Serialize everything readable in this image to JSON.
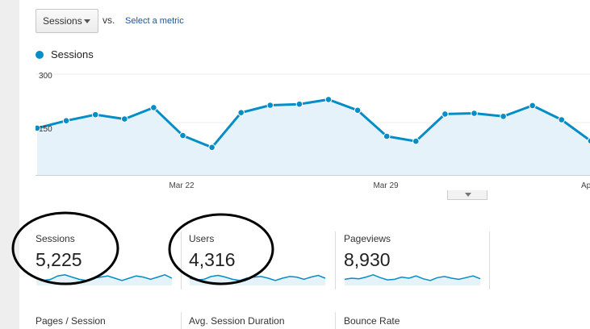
{
  "toolbar": {
    "metric_select": "Sessions",
    "vs": "vs.",
    "select_metric": "Select a metric"
  },
  "legend": {
    "series": "Sessions",
    "color": "#058dc7"
  },
  "chart_data": {
    "type": "area",
    "series": [
      {
        "name": "Sessions",
        "values": [
          140,
          162,
          180,
          167,
          201,
          118,
          83,
          186,
          208,
          211,
          225,
          193,
          116,
          101,
          182,
          184,
          175,
          207,
          165,
          102
        ]
      }
    ],
    "x_tick_labels": [
      "Mar 22",
      "Mar 29",
      "Ap"
    ],
    "y_tick_labels": [
      "300",
      "150"
    ],
    "ylim": [
      0,
      300
    ],
    "grid": true
  },
  "metrics": [
    {
      "label": "Sessions",
      "value": "5,225",
      "spark": [
        0.5,
        0.3,
        0.4,
        0.7,
        0.8,
        0.6,
        0.4,
        0.3,
        0.5,
        0.6,
        0.7,
        0.5,
        0.3,
        0.5,
        0.7,
        0.6,
        0.4,
        0.6,
        0.8,
        0.5
      ]
    },
    {
      "label": "Users",
      "value": "4,316",
      "spark": [
        0.5,
        0.35,
        0.4,
        0.65,
        0.75,
        0.6,
        0.4,
        0.3,
        0.5,
        0.6,
        0.65,
        0.5,
        0.3,
        0.5,
        0.65,
        0.6,
        0.4,
        0.6,
        0.75,
        0.5
      ]
    },
    {
      "label": "Pageviews",
      "value": "8,930",
      "spark": [
        0.4,
        0.5,
        0.45,
        0.6,
        0.8,
        0.55,
        0.35,
        0.4,
        0.6,
        0.5,
        0.7,
        0.45,
        0.3,
        0.55,
        0.65,
        0.5,
        0.4,
        0.55,
        0.7,
        0.45
      ]
    }
  ],
  "metrics2": [
    "Pages / Session",
    "Avg. Session Duration",
    "Bounce Rate"
  ],
  "colors": {
    "line": "#058dc7",
    "fill": "#e5f2f9"
  }
}
